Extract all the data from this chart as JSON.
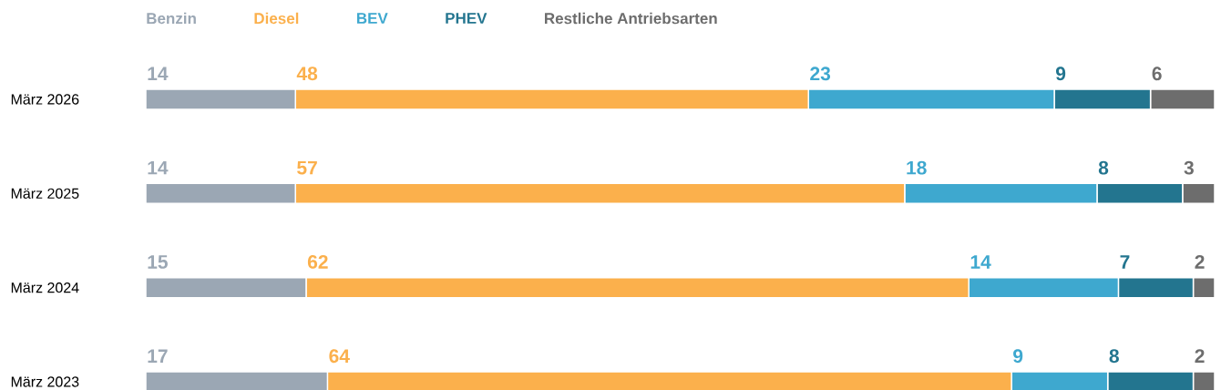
{
  "chart_data": {
    "type": "bar",
    "orientation": "horizontal",
    "stacked": true,
    "data_labels": true,
    "legend": "top",
    "xlim": [
      0,
      100
    ],
    "categories": [
      "März 2026",
      "März 2025",
      "März 2024",
      "März 2023"
    ],
    "series": [
      {
        "name": "Benzin",
        "color": "#9ba7b4",
        "values": [
          14,
          14,
          15,
          17
        ]
      },
      {
        "name": "Diesel",
        "color": "#fbb04c",
        "values": [
          48,
          57,
          62,
          64
        ]
      },
      {
        "name": "BEV",
        "color": "#3ea8cf",
        "values": [
          23,
          18,
          14,
          9
        ]
      },
      {
        "name": "PHEV",
        "color": "#23758f",
        "values": [
          9,
          8,
          7,
          8
        ]
      },
      {
        "name": "Restliche Antriebsarten",
        "color": "#6d6d6d",
        "values": [
          6,
          3,
          2,
          2
        ]
      }
    ]
  }
}
